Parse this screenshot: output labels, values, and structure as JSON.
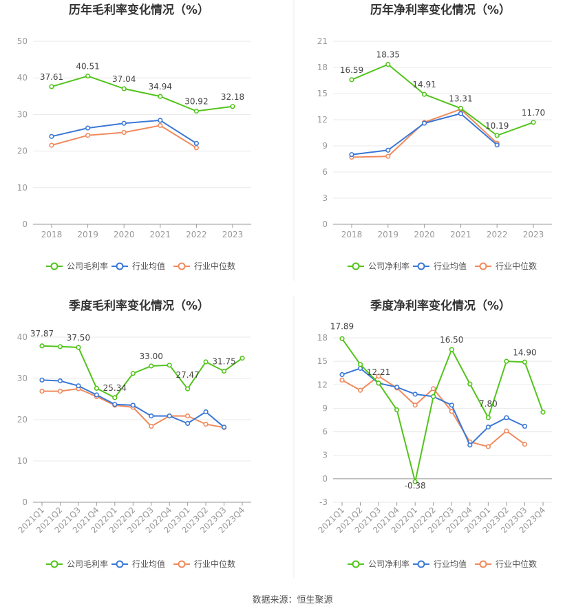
{
  "source": "数据来源：恒生聚源",
  "chart_data": [
    {
      "type": "line",
      "title": "历年毛利率变化情况（%）",
      "categories": [
        "2018",
        "2019",
        "2020",
        "2021",
        "2022",
        "2023"
      ],
      "ylim": [
        0,
        50
      ],
      "yticks": [
        0,
        10,
        20,
        30,
        40,
        50
      ],
      "grid": true,
      "legend_position": "bottom",
      "series": [
        {
          "name": "公司毛利率",
          "color": "#52c41a",
          "values": [
            37.61,
            40.51,
            37.04,
            34.94,
            30.92,
            32.18
          ],
          "labels": [
            "37.61",
            "40.51",
            "37.04",
            "34.94",
            "30.92",
            "32.18"
          ]
        },
        {
          "name": "行业均值",
          "color": "#3a78d6",
          "values": [
            24.0,
            26.3,
            27.6,
            28.4,
            22.1,
            null
          ]
        },
        {
          "name": "行业中位数",
          "color": "#f08a5d",
          "values": [
            21.6,
            24.3,
            25.1,
            27.0,
            20.9,
            null
          ]
        }
      ]
    },
    {
      "type": "line",
      "title": "历年净利率变化情况（%）",
      "categories": [
        "2018",
        "2019",
        "2020",
        "2021",
        "2022",
        "2023"
      ],
      "ylim": [
        0,
        21
      ],
      "yticks": [
        0,
        3,
        6,
        9,
        12,
        15,
        18,
        21
      ],
      "grid": true,
      "legend_position": "bottom",
      "series": [
        {
          "name": "公司净利率",
          "color": "#52c41a",
          "values": [
            16.59,
            18.35,
            14.91,
            13.31,
            10.19,
            11.7
          ],
          "labels": [
            "16.59",
            "18.35",
            "14.91",
            "13.31",
            "10.19",
            "11.70"
          ]
        },
        {
          "name": "行业均值",
          "color": "#3a78d6",
          "values": [
            8.0,
            8.5,
            11.6,
            12.7,
            9.1,
            null
          ]
        },
        {
          "name": "行业中位数",
          "color": "#f08a5d",
          "values": [
            7.7,
            7.8,
            11.7,
            13.2,
            9.3,
            null
          ]
        }
      ]
    },
    {
      "type": "line",
      "title": "季度毛利率变化情况（%）",
      "categories": [
        "2021Q1",
        "2021Q2",
        "2021Q3",
        "2021Q4",
        "2022Q1",
        "2022Q2",
        "2022Q3",
        "2022Q4",
        "2023Q1",
        "2023Q2",
        "2023Q3",
        "2023Q4"
      ],
      "ylim": [
        0,
        40
      ],
      "yticks": [
        0,
        10,
        20,
        30,
        40
      ],
      "grid": true,
      "legend_position": "bottom",
      "series": [
        {
          "name": "公司毛利率",
          "color": "#52c41a",
          "values": [
            37.87,
            37.7,
            37.5,
            27.6,
            25.34,
            31.2,
            33.0,
            33.2,
            27.47,
            34.0,
            31.75,
            34.9
          ],
          "labels": [
            "37.87",
            "",
            "37.50",
            "",
            "25.34",
            "",
            "33.00",
            "",
            "27.47",
            "",
            "31.75",
            ""
          ]
        },
        {
          "name": "行业均值",
          "color": "#3a78d6",
          "values": [
            29.6,
            29.4,
            28.2,
            26.0,
            23.7,
            23.5,
            20.9,
            20.9,
            19.1,
            21.9,
            18.2,
            null
          ]
        },
        {
          "name": "行业中位数",
          "color": "#f08a5d",
          "values": [
            26.9,
            26.9,
            27.5,
            25.6,
            23.5,
            23.0,
            18.4,
            20.9,
            20.9,
            18.9,
            18.1,
            null
          ]
        }
      ]
    },
    {
      "type": "line",
      "title": "季度净利率变化情况（%）",
      "categories": [
        "2021Q1",
        "2021Q2",
        "2021Q3",
        "2021Q4",
        "2022Q1",
        "2022Q2",
        "2022Q3",
        "2022Q4",
        "2023Q1",
        "2023Q2",
        "2023Q3",
        "2023Q4"
      ],
      "ylim": [
        -3,
        18
      ],
      "yticks": [
        -3,
        0,
        3,
        6,
        9,
        12,
        15,
        18
      ],
      "grid": true,
      "legend_position": "bottom",
      "series": [
        {
          "name": "公司净利率",
          "color": "#52c41a",
          "values": [
            17.89,
            14.6,
            12.21,
            8.8,
            -0.38,
            10.5,
            16.5,
            12.1,
            7.8,
            15.0,
            14.9,
            8.5
          ],
          "labels": [
            "17.89",
            "",
            "12.21",
            "",
            "-0.38",
            "",
            "16.50",
            "",
            "7.80",
            "",
            "14.90",
            ""
          ]
        },
        {
          "name": "行业均值",
          "color": "#3a78d6",
          "values": [
            13.3,
            14.1,
            12.2,
            11.7,
            10.8,
            10.5,
            9.4,
            4.3,
            6.6,
            7.8,
            6.7,
            null
          ]
        },
        {
          "name": "行业中位数",
          "color": "#f08a5d",
          "values": [
            12.6,
            11.3,
            13.1,
            11.6,
            9.4,
            11.5,
            8.6,
            4.7,
            4.1,
            6.1,
            4.4,
            null
          ]
        }
      ]
    }
  ]
}
